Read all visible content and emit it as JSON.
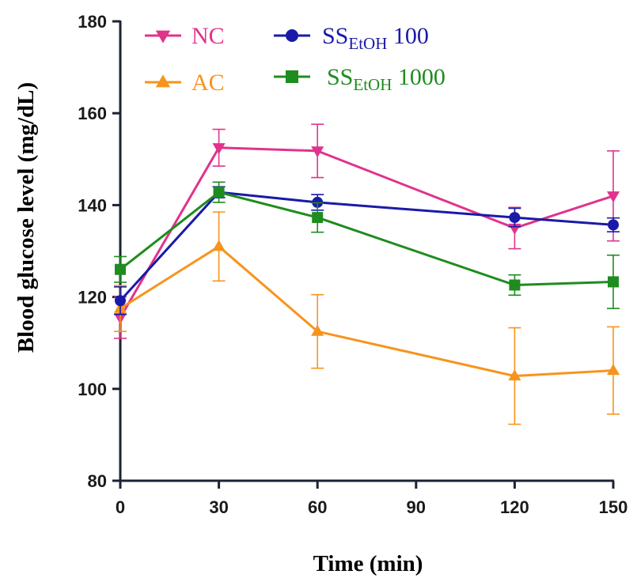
{
  "chart_data": {
    "type": "line",
    "title": "",
    "xlabel": "Time (min)",
    "ylabel": "Blood glucose level (mg/dL)",
    "x": [
      0,
      30,
      60,
      120,
      150
    ],
    "xticks": [
      0,
      30,
      60,
      90,
      120,
      150
    ],
    "yticks": [
      80,
      100,
      120,
      140,
      160,
      180
    ],
    "xlim": [
      0,
      150
    ],
    "ylim": [
      80,
      180
    ],
    "grid": false,
    "legend_position": "top",
    "series": [
      {
        "name": "NC",
        "name_main": "NC",
        "name_sub": "",
        "name_tail": "",
        "color": "#e0338c",
        "marker": "triangle-down",
        "values": [
          115.5,
          152.5,
          151.8,
          135.0,
          142.0
        ],
        "errors": [
          4.5,
          4.0,
          5.8,
          4.5,
          9.8
        ]
      },
      {
        "name": "AC",
        "name_main": "AC",
        "name_sub": "",
        "name_tail": "",
        "color": "#f7941d",
        "marker": "triangle-up",
        "values": [
          117.5,
          131.0,
          112.5,
          102.8,
          104.0
        ],
        "errors": [
          5.0,
          7.5,
          8.0,
          10.5,
          9.5
        ]
      },
      {
        "name": "SS EtOH 100",
        "name_main": "SS",
        "name_sub": "EtOH",
        "name_tail": " 100",
        "color": "#1a1aa8",
        "marker": "circle",
        "values": [
          119.2,
          142.8,
          140.6,
          137.3,
          135.7
        ],
        "errors": [
          3.0,
          1.2,
          1.7,
          2.0,
          1.5
        ]
      },
      {
        "name": "SS EtOH 1000",
        "name_main": "SS",
        "name_sub": "EtOH",
        "name_tail": " 1000",
        "color": "#1f8c1f",
        "marker": "square",
        "values": [
          126.0,
          142.8,
          137.3,
          122.6,
          123.3
        ],
        "errors": [
          2.8,
          2.2,
          3.2,
          2.2,
          5.8
        ]
      }
    ]
  }
}
